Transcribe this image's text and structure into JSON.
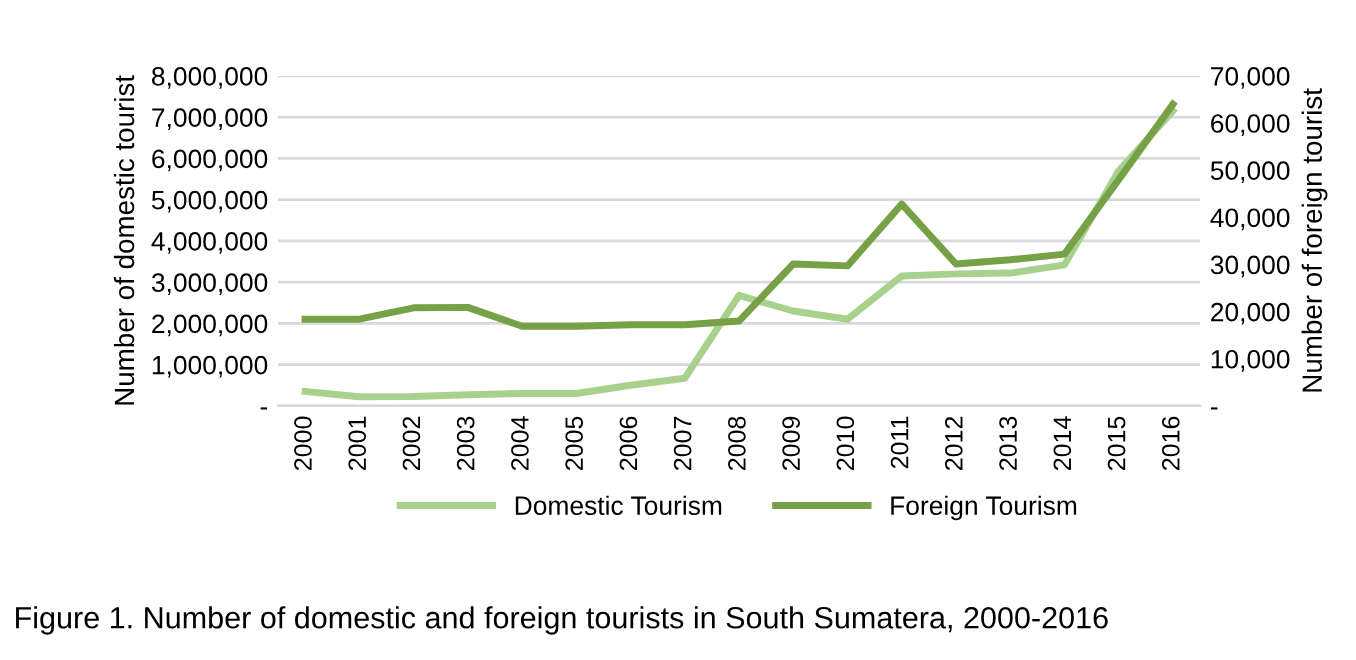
{
  "chart_data": {
    "type": "line",
    "categories": [
      "2000",
      "2001",
      "2002",
      "2003",
      "2004",
      "2005",
      "2006",
      "2007",
      "2008",
      "2009",
      "2010",
      "2011",
      "2012",
      "2013",
      "2014",
      "2015",
      "2016"
    ],
    "series": [
      {
        "name": "Domestic Tourism",
        "color": "#a9d18e",
        "values": [
          350000,
          220000,
          230000,
          270000,
          300000,
          300000,
          500000,
          670000,
          2680000,
          2300000,
          2100000,
          3150000,
          3200000,
          3220000,
          3420000,
          5700000,
          7150000
        ]
      },
      {
        "name": "Foreign Tourism",
        "color": "#77a146",
        "axis": "y2",
        "values": [
          18400,
          18400,
          20800,
          20900,
          16900,
          16900,
          17200,
          17200,
          18000,
          30100,
          29700,
          42800,
          30100,
          31000,
          32200,
          48000,
          64000
        ]
      }
    ],
    "ylabel": "Number of domestic tourist",
    "y2label": "Number of foreign tourist",
    "ylim": [
      0,
      8000000
    ],
    "yticks": [
      {
        "value": 0,
        "label": "-"
      },
      {
        "value": 1000000,
        "label": "1,000,000"
      },
      {
        "value": 2000000,
        "label": "2,000,000"
      },
      {
        "value": 3000000,
        "label": "3,000,000"
      },
      {
        "value": 4000000,
        "label": "4,000,000"
      },
      {
        "value": 5000000,
        "label": "5,000,000"
      },
      {
        "value": 6000000,
        "label": "6,000,000"
      },
      {
        "value": 7000000,
        "label": "7,000,000"
      },
      {
        "value": 8000000,
        "label": "8,000,000"
      }
    ],
    "y2lim": [
      0,
      70000
    ],
    "y2ticks": [
      {
        "value": 0,
        "label": "-"
      },
      {
        "value": 10000,
        "label": "10,000"
      },
      {
        "value": 20000,
        "label": "20,000"
      },
      {
        "value": 30000,
        "label": "30,000"
      },
      {
        "value": 40000,
        "label": "40,000"
      },
      {
        "value": 50000,
        "label": "50,000"
      },
      {
        "value": 60000,
        "label": "60,000"
      },
      {
        "value": 70000,
        "label": "70,000"
      }
    ],
    "grid": "y",
    "legend": "bottom",
    "marker": "none",
    "line_style": "solid",
    "annotations": [
      "Figure 1. Number of domestic and foreign tourists in South Sumatera, 2000-2016"
    ]
  }
}
